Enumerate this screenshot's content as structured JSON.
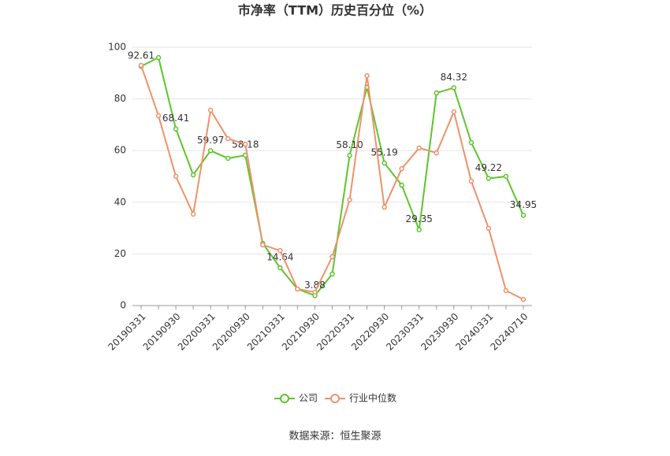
{
  "chart_data": {
    "type": "line",
    "title": "市净率（TTM）历史百分位（%）",
    "source": "数据来源：恒生聚源",
    "categories": [
      "20190331",
      null,
      "20190930",
      null,
      "20200331",
      null,
      "20200930",
      null,
      "20210331",
      null,
      "20210930",
      null,
      "20220331",
      null,
      "20220930",
      null,
      "20230331",
      null,
      "20230930",
      null,
      "20240331",
      null,
      "20240710"
    ],
    "series": [
      {
        "name": "公司",
        "color": "#5cc62c",
        "values": [
          92.61,
          96.0,
          68.41,
          50.6,
          59.97,
          57.0,
          58.18,
          24.1,
          14.64,
          6.4,
          3.88,
          12.2,
          58.1,
          84.5,
          55.19,
          46.6,
          29.35,
          82.3,
          84.32,
          63.1,
          49.22,
          50.0,
          34.95
        ],
        "value_labels": [
          "92.61",
          null,
          "68.41",
          null,
          "59.97",
          null,
          "58.18",
          null,
          "14.64",
          null,
          "3.88",
          null,
          "58.10",
          null,
          "55.19",
          null,
          "29.35",
          null,
          "84.32",
          null,
          "49.22",
          null,
          "34.95"
        ]
      },
      {
        "name": "行业中位数",
        "color": "#f0916a",
        "values": [
          93.0,
          73.5,
          50.0,
          35.4,
          75.6,
          64.6,
          62.5,
          23.5,
          21.3,
          6.4,
          5.2,
          18.9,
          40.9,
          89.0,
          38.1,
          53.0,
          61.0,
          59.1,
          75.0,
          48.2,
          29.9,
          5.8,
          2.4
        ]
      }
    ],
    "ylim": [
      0,
      100
    ],
    "yticks": [
      0,
      20,
      40,
      60,
      80,
      100
    ],
    "grid": true,
    "legend": "bottom"
  }
}
